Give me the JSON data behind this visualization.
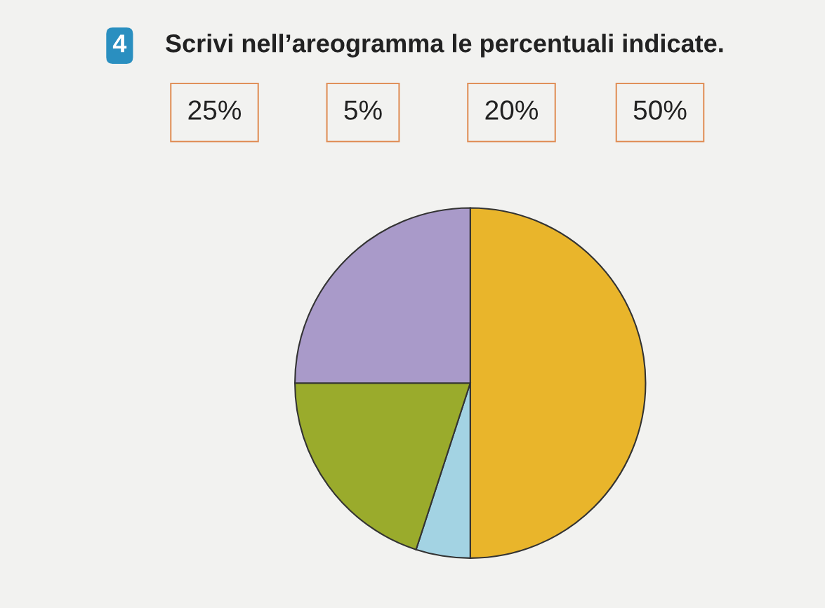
{
  "chart_data": {
    "type": "pie",
    "title": "Scrivi nell’areogramma le percentuali indicate.",
    "categories": [
      null,
      null,
      null,
      null
    ],
    "values": [
      50,
      5,
      20,
      25
    ],
    "colors": [
      "#e9b52b",
      "#a3d3e3",
      "#9aab2c",
      "#a99ac9"
    ],
    "annotations": [
      "4",
      "25%",
      "5%",
      "20%",
      "50%"
    ]
  }
}
